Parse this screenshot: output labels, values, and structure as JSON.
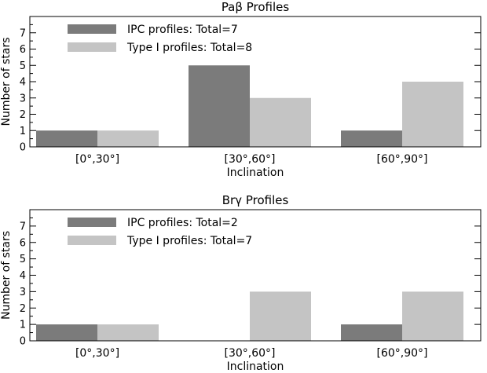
{
  "chart_data": [
    {
      "type": "bar",
      "title": "Paβ Profiles",
      "xlabel": "Inclination",
      "ylabel": "Number of stars",
      "ylim": [
        0,
        8
      ],
      "yticks": [
        0,
        1,
        2,
        3,
        4,
        5,
        6,
        7
      ],
      "categories": [
        "[0°,30°]",
        "[30°,60°]",
        "[60°,90°]"
      ],
      "legend_position": "top-left",
      "series": [
        {
          "name": "IPC profiles: Total=7",
          "values": [
            1,
            5,
            1
          ],
          "color": "#7b7b7b"
        },
        {
          "name": "Type I profiles: Total=8",
          "values": [
            1,
            3,
            4
          ],
          "color": "#c4c4c4"
        }
      ]
    },
    {
      "type": "bar",
      "title": "Brγ Profiles",
      "xlabel": "Inclination",
      "ylabel": "Number of stars",
      "ylim": [
        0,
        8
      ],
      "yticks": [
        0,
        1,
        2,
        3,
        4,
        5,
        6,
        7
      ],
      "categories": [
        "[0°,30°]",
        "[30°,60°]",
        "[60°,90°]"
      ],
      "legend_position": "top-left",
      "series": [
        {
          "name": "IPC profiles: Total=2",
          "values": [
            1,
            0,
            1
          ],
          "color": "#7b7b7b"
        },
        {
          "name": "Type I profiles: Total=7",
          "values": [
            1,
            3,
            3
          ],
          "color": "#c4c4c4"
        }
      ]
    }
  ]
}
